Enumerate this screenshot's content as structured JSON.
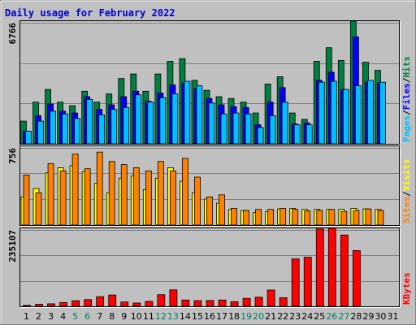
{
  "title": "Daily usage for February 2022",
  "colors": {
    "title": "#0000cc",
    "hits": "#008040",
    "files": "#0000ff",
    "pages": "#00c0ff",
    "visits": "#ffff00",
    "sites": "#ff8000",
    "kbytes": "#ff0000",
    "weekend_day": "#00805c",
    "weekday": "#000000",
    "plot_bg": "#c0c0c0",
    "frame_dark": "#808080",
    "frame_light": "#ffffff"
  },
  "chart_data": [
    {
      "type": "bar",
      "name": "hits-files-pages",
      "ymax_label": "6766",
      "ylim": [
        0,
        6766
      ],
      "legend": [
        "Pages",
        "Files",
        "Hits"
      ],
      "categories": [
        "1",
        "2",
        "3",
        "4",
        "5",
        "6",
        "7",
        "8",
        "9",
        "10",
        "11",
        "12",
        "13",
        "14",
        "15",
        "16",
        "17",
        "18",
        "19",
        "20",
        "21",
        "22",
        "23",
        "24",
        "25",
        "26",
        "27",
        "28",
        "29",
        "30",
        "31"
      ],
      "series": [
        {
          "name": "Hits",
          "values": [
            1250,
            2300,
            3000,
            2300,
            2100,
            2900,
            2300,
            2750,
            3600,
            3850,
            2900,
            3850,
            4550,
            4700,
            3500,
            2950,
            2600,
            2500,
            2300,
            1700,
            3300,
            3700,
            1700,
            1350,
            4550,
            5300,
            4600,
            6766,
            4500,
            4050,
            null
          ]
        },
        {
          "name": "Files",
          "values": [
            700,
            1550,
            2200,
            1800,
            1700,
            2600,
            1900,
            2150,
            2600,
            2900,
            2350,
            2800,
            3250,
            3350,
            3050,
            2500,
            2150,
            2050,
            2000,
            1050,
            2300,
            3100,
            1100,
            1150,
            3500,
            3950,
            3000,
            5900,
            3400,
            3350,
            null
          ]
        },
        {
          "name": "Pages",
          "values": [
            700,
            1250,
            1800,
            1650,
            1400,
            2450,
            1600,
            1900,
            2000,
            2700,
            2300,
            2550,
            2750,
            3450,
            3200,
            2250,
            1650,
            1700,
            1650,
            900,
            1550,
            2300,
            1050,
            1050,
            3400,
            3450,
            3000,
            3200,
            3500,
            3400,
            null
          ]
        }
      ]
    },
    {
      "type": "bar",
      "name": "visits-sites",
      "ymax_label": "756",
      "ylim": [
        0,
        756
      ],
      "legend": [
        "Sites",
        "Visits"
      ],
      "categories": [
        "1",
        "2",
        "3",
        "4",
        "5",
        "6",
        "7",
        "8",
        "9",
        "10",
        "11",
        "12",
        "13",
        "14",
        "15",
        "16",
        "17",
        "18",
        "19",
        "20",
        "21",
        "22",
        "23",
        "24",
        "25",
        "26",
        "27",
        "28",
        "29",
        "30",
        "31"
      ],
      "series": [
        {
          "name": "Visits",
          "values": [
            270,
            350,
            500,
            550,
            570,
            510,
            400,
            310,
            450,
            470,
            340,
            450,
            550,
            420,
            310,
            250,
            210,
            150,
            140,
            120,
            130,
            155,
            160,
            150,
            150,
            150,
            150,
            160,
            155,
            150,
            null
          ]
        },
        {
          "name": "Sites",
          "values": [
            480,
            310,
            590,
            520,
            680,
            540,
            700,
            610,
            580,
            550,
            520,
            610,
            520,
            640,
            460,
            270,
            290,
            160,
            140,
            150,
            150,
            160,
            150,
            135,
            140,
            150,
            130,
            140,
            155,
            140,
            null
          ]
        }
      ]
    },
    {
      "type": "bar",
      "name": "kbytes",
      "ymax_label": "235107",
      "ylim": [
        0,
        235107
      ],
      "legend": [
        "KBytes"
      ],
      "categories": [
        "1",
        "2",
        "3",
        "4",
        "5",
        "6",
        "7",
        "8",
        "9",
        "10",
        "11",
        "12",
        "13",
        "14",
        "15",
        "16",
        "17",
        "18",
        "19",
        "20",
        "21",
        "22",
        "23",
        "24",
        "25",
        "26",
        "27",
        "28",
        "29",
        "30",
        "31"
      ],
      "series": [
        {
          "name": "KBytes",
          "values": [
            3000,
            6000,
            7500,
            11500,
            17000,
            20000,
            29000,
            34000,
            13000,
            10000,
            15000,
            35000,
            49500,
            19000,
            17000,
            17500,
            19000,
            14000,
            24000,
            27500,
            49000,
            26000,
            143000,
            148000,
            233000,
            235107,
            215000,
            168000,
            null,
            null,
            null
          ]
        }
      ]
    }
  ]
}
